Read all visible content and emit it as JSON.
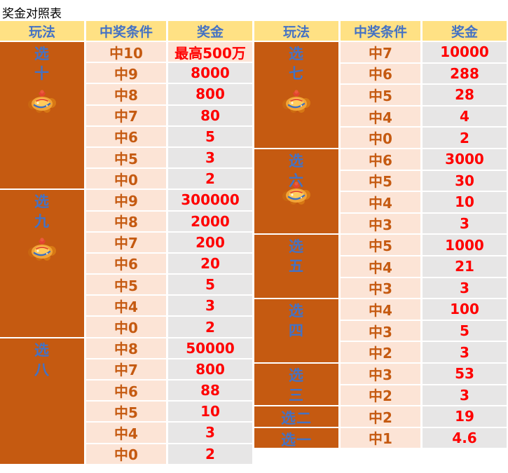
{
  "title": "奖金对照表",
  "columns": {
    "play": "玩法",
    "condition": "中奖条件",
    "prize": "奖金"
  },
  "colors": {
    "header_bg": "#FFE184",
    "header_text": "#4472C4",
    "play_bg": "#C55A11",
    "play_text": "#4472C4",
    "condition_bg": "#FCE4D6",
    "condition_text": "#C55A11",
    "prize_bg": "#E7E6E6",
    "prize_text": "#FF0000",
    "top_prize_highlight_bg": "#FCE4D6",
    "separator": "#FFFFFF"
  },
  "icon_name": "kuaile8-mascot-icon",
  "tables": [
    {
      "name": "left",
      "groups": [
        {
          "label": "选十",
          "label_lines": [
            "选",
            "十"
          ],
          "icon": true,
          "rows": [
            {
              "c": "中10",
              "p": "最高500万",
              "hl": true
            },
            {
              "c": "中9",
              "p": "8000"
            },
            {
              "c": "中8",
              "p": "800"
            },
            {
              "c": "中7",
              "p": "80"
            },
            {
              "c": "中6",
              "p": "5"
            },
            {
              "c": "中5",
              "p": "3"
            },
            {
              "c": "中0",
              "p": "2"
            }
          ]
        },
        {
          "label": "选九",
          "label_lines": [
            "选",
            "九"
          ],
          "icon": true,
          "rows": [
            {
              "c": "中9",
              "p": "300000"
            },
            {
              "c": "中8",
              "p": "2000"
            },
            {
              "c": "中7",
              "p": "200"
            },
            {
              "c": "中6",
              "p": "20"
            },
            {
              "c": "中5",
              "p": "5"
            },
            {
              "c": "中4",
              "p": "3"
            },
            {
              "c": "中0",
              "p": "2"
            }
          ]
        },
        {
          "label": "选八",
          "label_lines": [
            "选",
            "八"
          ],
          "icon": false,
          "rows": [
            {
              "c": "中8",
              "p": "50000"
            },
            {
              "c": "中7",
              "p": "800"
            },
            {
              "c": "中6",
              "p": "88"
            },
            {
              "c": "中5",
              "p": "10"
            },
            {
              "c": "中4",
              "p": "3"
            },
            {
              "c": "中0",
              "p": "2"
            }
          ]
        }
      ]
    },
    {
      "name": "right",
      "groups": [
        {
          "label": "选七",
          "label_lines": [
            "选",
            "七"
          ],
          "icon": true,
          "rows": [
            {
              "c": "中7",
              "p": "10000"
            },
            {
              "c": "中6",
              "p": "288"
            },
            {
              "c": "中5",
              "p": "28"
            },
            {
              "c": "中4",
              "p": "4"
            },
            {
              "c": "中0",
              "p": "2"
            }
          ]
        },
        {
          "label": "选六",
          "label_lines": [
            "选",
            "六"
          ],
          "icon": true,
          "icon_overlap": true,
          "rows": [
            {
              "c": "中6",
              "p": "3000"
            },
            {
              "c": "中5",
              "p": "30"
            },
            {
              "c": "中4",
              "p": "10"
            },
            {
              "c": "中3",
              "p": "3"
            }
          ]
        },
        {
          "label": "选五",
          "label_lines": [
            "选",
            "五"
          ],
          "icon": false,
          "rows": [
            {
              "c": "中5",
              "p": "1000"
            },
            {
              "c": "中4",
              "p": "21"
            },
            {
              "c": "中3",
              "p": "3"
            }
          ]
        },
        {
          "label": "选四",
          "label_lines": [
            "选",
            "四"
          ],
          "icon": false,
          "rows": [
            {
              "c": "中4",
              "p": "100"
            },
            {
              "c": "中3",
              "p": "5"
            },
            {
              "c": "中2",
              "p": "3"
            }
          ]
        },
        {
          "label": "选三",
          "label_lines": [
            "选",
            "三"
          ],
          "icon": false,
          "rows": [
            {
              "c": "中3",
              "p": "53"
            },
            {
              "c": "中2",
              "p": "3"
            }
          ]
        },
        {
          "label": "选二",
          "label_lines": [
            "选二"
          ],
          "icon": false,
          "rows": [
            {
              "c": "中2",
              "p": "19"
            }
          ]
        },
        {
          "label": "选一",
          "label_lines": [
            "选一"
          ],
          "icon": false,
          "rows": [
            {
              "c": "中1",
              "p": "4.6"
            }
          ]
        }
      ]
    }
  ],
  "chart_data": {
    "type": "table",
    "title": "奖金对照表",
    "columns": [
      "玩法",
      "中奖条件",
      "奖金"
    ],
    "rows": [
      [
        "选十",
        "中10",
        "最高500万"
      ],
      [
        "选十",
        "中9",
        "8000"
      ],
      [
        "选十",
        "中8",
        "800"
      ],
      [
        "选十",
        "中7",
        "80"
      ],
      [
        "选十",
        "中6",
        "5"
      ],
      [
        "选十",
        "中5",
        "3"
      ],
      [
        "选十",
        "中0",
        "2"
      ],
      [
        "选九",
        "中9",
        "300000"
      ],
      [
        "选九",
        "中8",
        "2000"
      ],
      [
        "选九",
        "中7",
        "200"
      ],
      [
        "选九",
        "中6",
        "20"
      ],
      [
        "选九",
        "中5",
        "5"
      ],
      [
        "选九",
        "中4",
        "3"
      ],
      [
        "选九",
        "中0",
        "2"
      ],
      [
        "选八",
        "中8",
        "50000"
      ],
      [
        "选八",
        "中7",
        "800"
      ],
      [
        "选八",
        "中6",
        "88"
      ],
      [
        "选八",
        "中5",
        "10"
      ],
      [
        "选八",
        "中4",
        "3"
      ],
      [
        "选八",
        "中0",
        "2"
      ],
      [
        "选七",
        "中7",
        "10000"
      ],
      [
        "选七",
        "中6",
        "288"
      ],
      [
        "选七",
        "中5",
        "28"
      ],
      [
        "选七",
        "中4",
        "4"
      ],
      [
        "选七",
        "中0",
        "2"
      ],
      [
        "选六",
        "中6",
        "3000"
      ],
      [
        "选六",
        "中5",
        "30"
      ],
      [
        "选六",
        "中4",
        "10"
      ],
      [
        "选六",
        "中3",
        "3"
      ],
      [
        "选五",
        "中5",
        "1000"
      ],
      [
        "选五",
        "中4",
        "21"
      ],
      [
        "选五",
        "中3",
        "3"
      ],
      [
        "选四",
        "中4",
        "100"
      ],
      [
        "选四",
        "中3",
        "5"
      ],
      [
        "选四",
        "中2",
        "3"
      ],
      [
        "选三",
        "中3",
        "53"
      ],
      [
        "选三",
        "中2",
        "3"
      ],
      [
        "选二",
        "中2",
        "19"
      ],
      [
        "选一",
        "中1",
        "4.6"
      ]
    ]
  }
}
